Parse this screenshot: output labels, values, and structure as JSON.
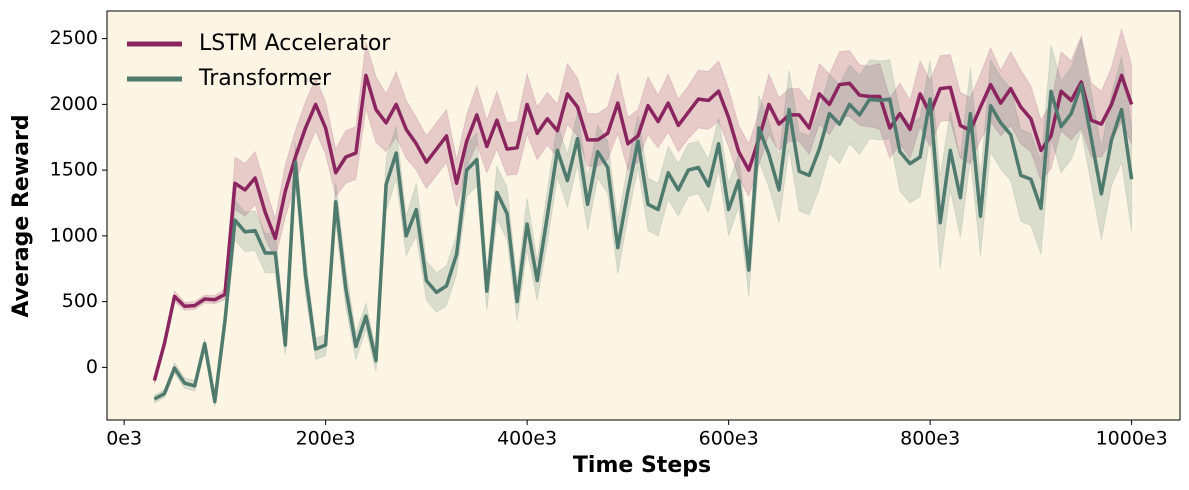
{
  "chart_data": {
    "type": "line",
    "xlabel": "Time Steps",
    "ylabel": "Average Reward",
    "background": "#fdf5e4",
    "legend": "upper left",
    "xlim": [
      -17000,
      1048000
    ],
    "ylim": [
      -400,
      2710
    ],
    "xticks": [
      {
        "value": 0,
        "label": "0e3"
      },
      {
        "value": 200000,
        "label": "200e3"
      },
      {
        "value": 400000,
        "label": "400e3"
      },
      {
        "value": 600000,
        "label": "600e3"
      },
      {
        "value": 800000,
        "label": "800e3"
      },
      {
        "value": 1000000,
        "label": "1000e3"
      }
    ],
    "yticks": [
      0,
      500,
      1000,
      1500,
      2000,
      2500
    ],
    "x": [
      30000,
      40000,
      50000,
      60000,
      70000,
      80000,
      90000,
      100000,
      110000,
      120000,
      130000,
      140000,
      150000,
      160000,
      170000,
      180000,
      190000,
      200000,
      210000,
      220000,
      230000,
      240000,
      250000,
      260000,
      270000,
      280000,
      290000,
      300000,
      310000,
      320000,
      330000,
      340000,
      350000,
      360000,
      370000,
      380000,
      390000,
      400000,
      410000,
      420000,
      430000,
      440000,
      450000,
      460000,
      470000,
      480000,
      490000,
      500000,
      510000,
      520000,
      530000,
      540000,
      550000,
      560000,
      570000,
      580000,
      590000,
      600000,
      610000,
      620000,
      630000,
      640000,
      650000,
      660000,
      670000,
      680000,
      690000,
      700000,
      710000,
      720000,
      730000,
      740000,
      750000,
      760000,
      770000,
      780000,
      790000,
      800000,
      810000,
      820000,
      830000,
      840000,
      850000,
      860000,
      870000,
      880000,
      890000,
      900000,
      910000,
      920000,
      930000,
      940000,
      950000,
      960000,
      970000,
      980000,
      990000,
      1000000
    ],
    "series": [
      {
        "name": "LSTM Accelerator",
        "color": "#8b2560",
        "values": [
          -100,
          180,
          540,
          465,
          470,
          520,
          515,
          555,
          1400,
          1350,
          1440,
          1180,
          980,
          1340,
          1600,
          1820,
          2000,
          1820,
          1480,
          1600,
          1630,
          2220,
          1960,
          1860,
          2000,
          1810,
          1700,
          1560,
          1660,
          1760,
          1400,
          1720,
          1920,
          1680,
          1880,
          1660,
          1670,
          2000,
          1780,
          1890,
          1800,
          2080,
          1980,
          1730,
          1730,
          1780,
          2010,
          1700,
          1760,
          1990,
          1870,
          2010,
          1840,
          1940,
          2040,
          2030,
          2100,
          1900,
          1640,
          1500,
          1740,
          2000,
          1850,
          1920,
          1920,
          1820,
          2080,
          2000,
          2150,
          2160,
          2070,
          2060,
          2060,
          1820,
          1930,
          1810,
          2080,
          1930,
          2120,
          2130,
          1840,
          1800,
          1980,
          2150,
          2010,
          2120,
          1980,
          1890,
          1650,
          1760,
          2100,
          2030,
          2170,
          1880,
          1850,
          2000,
          2220,
          2000
        ],
        "errors": [
          30,
          40,
          40,
          30,
          30,
          30,
          30,
          40,
          200,
          200,
          200,
          200,
          150,
          200,
          200,
          200,
          200,
          200,
          180,
          200,
          200,
          250,
          250,
          220,
          250,
          220,
          200,
          200,
          200,
          200,
          180,
          200,
          220,
          200,
          220,
          200,
          200,
          230,
          200,
          200,
          200,
          230,
          220,
          200,
          200,
          200,
          230,
          200,
          200,
          220,
          200,
          220,
          200,
          200,
          220,
          220,
          230,
          220,
          200,
          200,
          200,
          230,
          200,
          200,
          200,
          200,
          230,
          230,
          250,
          250,
          230,
          230,
          250,
          230,
          230,
          220,
          250,
          250,
          250,
          250,
          250,
          250,
          250,
          280,
          250,
          280,
          280,
          250,
          230,
          250,
          300,
          300,
          350,
          280,
          250,
          280,
          350,
          300
        ]
      },
      {
        "name": "Transformer",
        "color": "#4f7a6e",
        "values": [
          -240,
          -200,
          -5,
          -120,
          -140,
          180,
          -260,
          350,
          1120,
          1030,
          1040,
          870,
          870,
          170,
          1560,
          700,
          140,
          170,
          1260,
          600,
          160,
          390,
          50,
          1390,
          1630,
          1000,
          1200,
          660,
          570,
          620,
          860,
          1500,
          1580,
          580,
          1330,
          1170,
          500,
          1090,
          660,
          1150,
          1650,
          1420,
          1740,
          1240,
          1640,
          1520,
          910,
          1340,
          1720,
          1240,
          1200,
          1480,
          1350,
          1500,
          1520,
          1380,
          1700,
          1200,
          1420,
          740,
          1820,
          1620,
          1350,
          1960,
          1490,
          1460,
          1660,
          1930,
          1850,
          2000,
          1920,
          2040,
          2030,
          2040,
          1640,
          1550,
          1600,
          2040,
          1100,
          1650,
          1290,
          1930,
          1150,
          1990,
          1860,
          1770,
          1460,
          1430,
          1210,
          2100,
          1830,
          1930,
          2150,
          1740,
          1320,
          1730,
          1960,
          1430
        ],
        "errors": [
          30,
          30,
          40,
          40,
          40,
          40,
          40,
          80,
          150,
          150,
          150,
          150,
          150,
          80,
          150,
          150,
          80,
          80,
          150,
          150,
          100,
          100,
          80,
          200,
          200,
          150,
          200,
          150,
          150,
          150,
          150,
          200,
          200,
          150,
          200,
          200,
          150,
          200,
          150,
          200,
          200,
          200,
          200,
          200,
          200,
          200,
          200,
          200,
          200,
          200,
          200,
          200,
          200,
          200,
          200,
          200,
          200,
          200,
          200,
          200,
          250,
          250,
          250,
          300,
          300,
          300,
          300,
          300,
          300,
          300,
          300,
          300,
          300,
          300,
          300,
          300,
          300,
          300,
          350,
          300,
          300,
          350,
          300,
          350,
          350,
          350,
          350,
          350,
          350,
          350,
          350,
          350,
          350,
          350,
          350,
          350,
          400,
          400
        ]
      }
    ]
  }
}
